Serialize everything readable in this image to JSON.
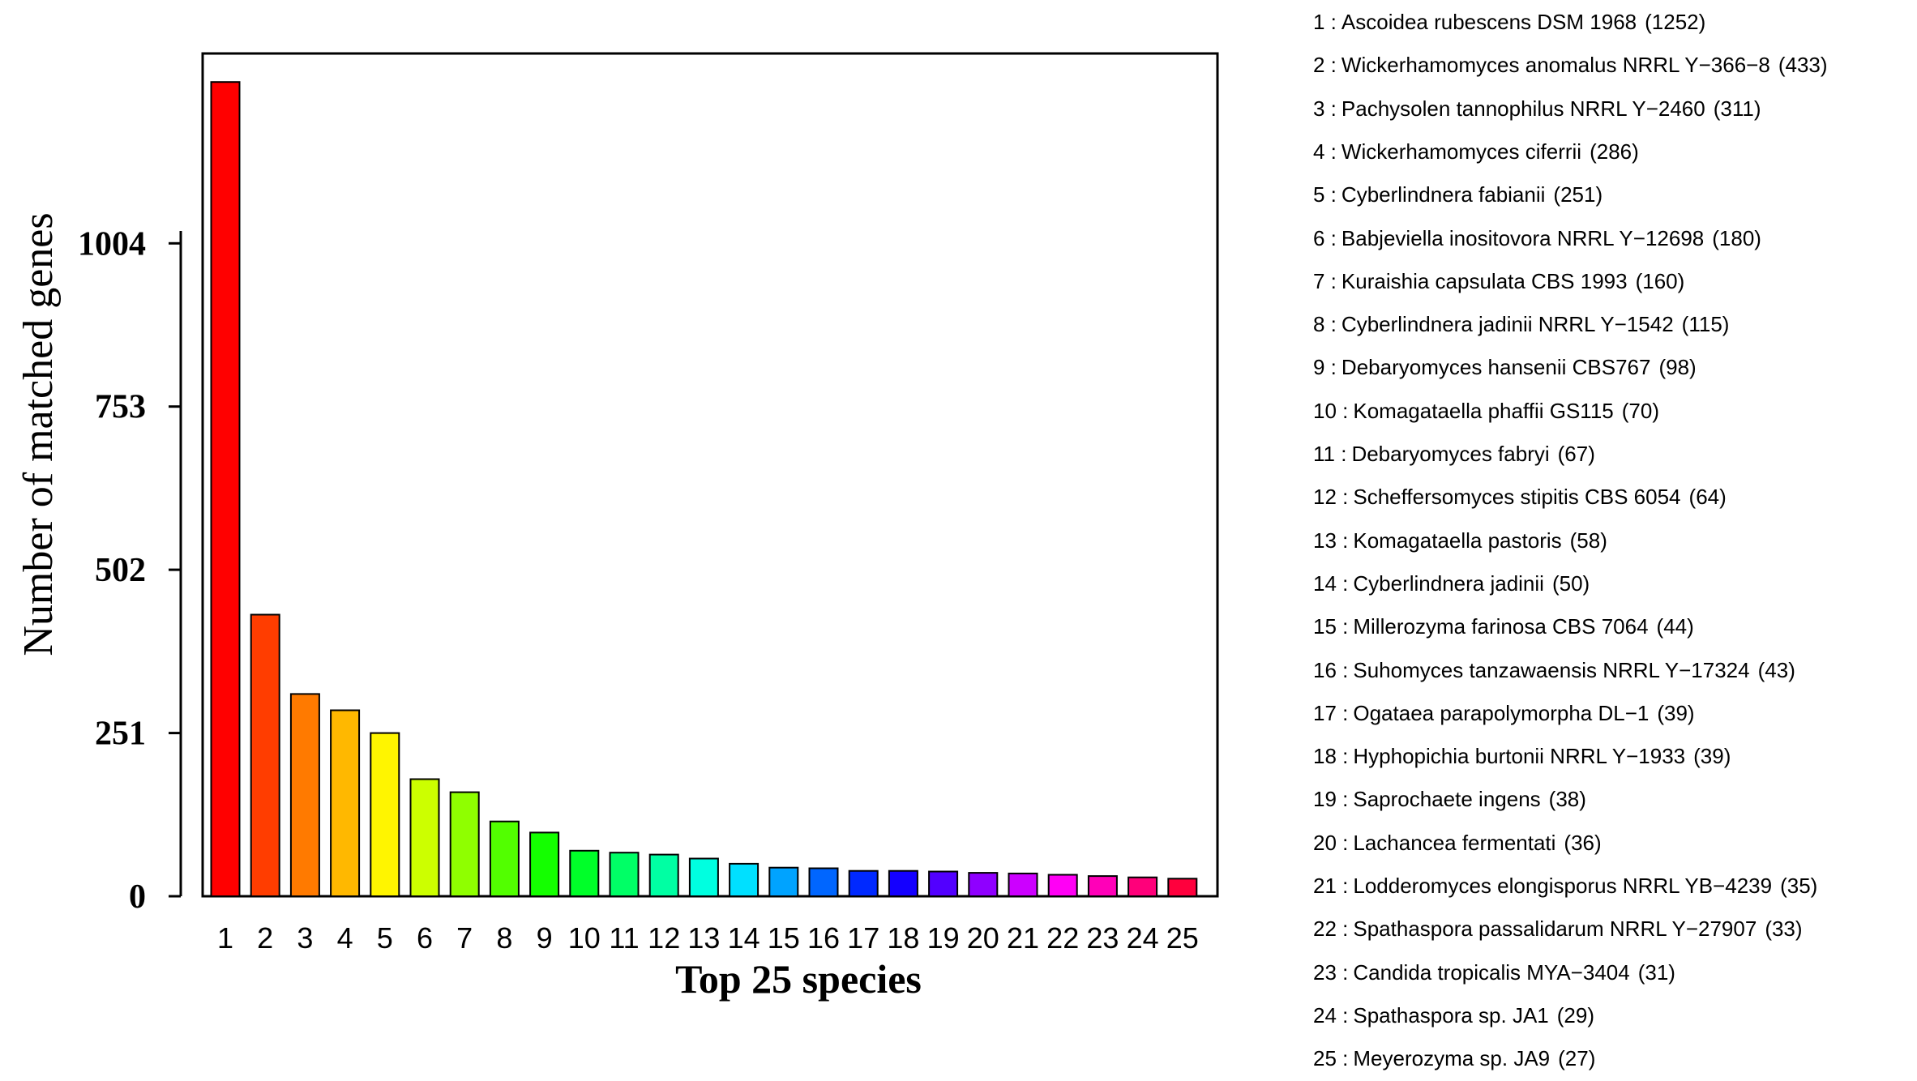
{
  "chart_data": {
    "type": "bar",
    "xlabel": "Top 25 species",
    "ylabel": "Number of matched genes",
    "ylim": [
      0,
      1271
    ],
    "yticks": [
      0,
      251,
      502,
      753,
      1004
    ],
    "categories": [
      "1",
      "2",
      "3",
      "4",
      "5",
      "6",
      "7",
      "8",
      "9",
      "10",
      "11",
      "12",
      "13",
      "14",
      "15",
      "16",
      "17",
      "18",
      "19",
      "20",
      "21",
      "22",
      "23",
      "24",
      "25"
    ],
    "values": [
      1252,
      433,
      311,
      286,
      251,
      180,
      160,
      115,
      98,
      70,
      67,
      64,
      58,
      50,
      44,
      43,
      39,
      39,
      38,
      36,
      35,
      33,
      31,
      29,
      27
    ],
    "colors": [
      "#FF0000",
      "#FF3D00",
      "#FF7A00",
      "#FFB800",
      "#FFF500",
      "#CCFF00",
      "#8FFF00",
      "#52FF00",
      "#14FF00",
      "#00FF29",
      "#00FF66",
      "#00FFA3",
      "#00FFE0",
      "#00E0FF",
      "#00A3FF",
      "#0066FF",
      "#0029FF",
      "#1400FF",
      "#5200FF",
      "#8F00FF",
      "#CC00FF",
      "#FF00F5",
      "#FF00B8",
      "#FF007A",
      "#FF003D"
    ],
    "grid": false,
    "legend_placement": "right",
    "legend": [
      {
        "index": "1 :",
        "name": "Ascoidea rubescens DSM 1968",
        "count": "(1252)"
      },
      {
        "index": "2 :",
        "name": "Wickerhamomyces anomalus NRRL Y−366−8",
        "count": "(433)"
      },
      {
        "index": "3 :",
        "name": "Pachysolen tannophilus NRRL Y−2460",
        "count": "(311)"
      },
      {
        "index": "4 :",
        "name": "Wickerhamomyces ciferrii",
        "count": "(286)"
      },
      {
        "index": "5 :",
        "name": "Cyberlindnera fabianii",
        "count": "(251)"
      },
      {
        "index": "6 :",
        "name": "Babjeviella inositovora NRRL Y−12698",
        "count": "(180)"
      },
      {
        "index": "7 :",
        "name": "Kuraishia capsulata CBS 1993",
        "count": "(160)"
      },
      {
        "index": "8 :",
        "name": "Cyberlindnera jadinii NRRL Y−1542",
        "count": "(115)"
      },
      {
        "index": "9 :",
        "name": "Debaryomyces hansenii CBS767",
        "count": "(98)"
      },
      {
        "index": "10 :",
        "name": "Komagataella phaffii GS115",
        "count": "(70)"
      },
      {
        "index": "11 :",
        "name": "Debaryomyces fabryi",
        "count": "(67)"
      },
      {
        "index": "12 :",
        "name": "Scheffersomyces stipitis CBS 6054",
        "count": "(64)"
      },
      {
        "index": "13 :",
        "name": "Komagataella pastoris",
        "count": "(58)"
      },
      {
        "index": "14 :",
        "name": "Cyberlindnera jadinii",
        "count": "(50)"
      },
      {
        "index": "15 :",
        "name": "Millerozyma farinosa CBS 7064",
        "count": "(44)"
      },
      {
        "index": "16 :",
        "name": "Suhomyces tanzawaensis NRRL Y−17324",
        "count": "(43)"
      },
      {
        "index": "17 :",
        "name": "Ogataea parapolymorpha DL−1",
        "count": "(39)"
      },
      {
        "index": "18 :",
        "name": "Hyphopichia burtonii NRRL Y−1933",
        "count": "(39)"
      },
      {
        "index": "19 :",
        "name": "Saprochaete ingens",
        "count": "(38)"
      },
      {
        "index": "20 :",
        "name": "Lachancea fermentati",
        "count": "(36)"
      },
      {
        "index": "21 :",
        "name": "Lodderomyces elongisporus NRRL YB−4239",
        "count": "(35)"
      },
      {
        "index": "22 :",
        "name": "Spathaspora passalidarum NRRL Y−27907",
        "count": "(33)"
      },
      {
        "index": "23 :",
        "name": "Candida tropicalis MYA−3404",
        "count": "(31)"
      },
      {
        "index": "24 :",
        "name": "Spathaspora sp. JA1",
        "count": "(29)"
      },
      {
        "index": "25 :",
        "name": "Meyerozyma sp. JA9",
        "count": "(27)"
      }
    ]
  }
}
